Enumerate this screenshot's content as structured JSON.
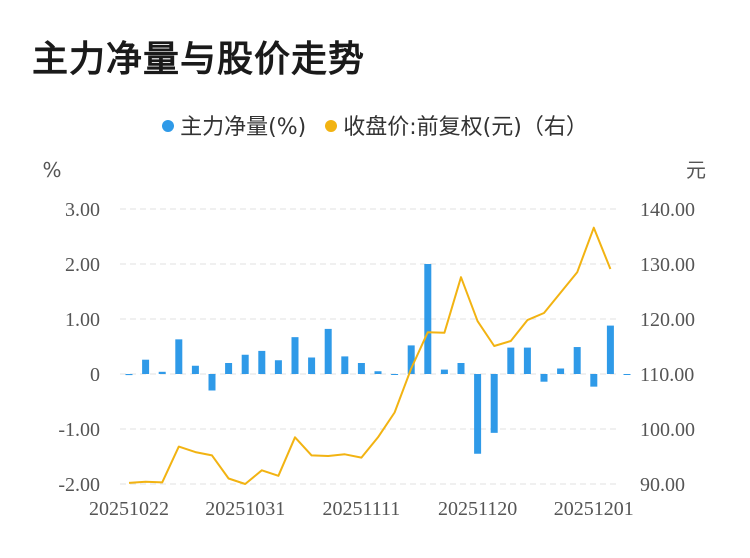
{
  "title": "主力净量与股价走势",
  "chart_data": {
    "type": "bar+line",
    "legend": [
      "主力净量(%)",
      "收盘价:前复权(元)（右）"
    ],
    "colors": {
      "bar": "#2f9ae8",
      "line": "#f2b312",
      "grid": "#e0e0e0",
      "axis_text": "#555555"
    },
    "left_axis": {
      "unit": "%",
      "ticks": [
        "3.00",
        "2.00",
        "1.00",
        "0",
        "-1.00",
        "-2.00"
      ],
      "range": [
        -2,
        3
      ]
    },
    "right_axis": {
      "unit": "元",
      "ticks": [
        "140.00",
        "130.00",
        "120.00",
        "110.00",
        "100.00",
        "90.00"
      ],
      "range": [
        90,
        140
      ]
    },
    "x_tick_labels": [
      "20251022",
      "20251031",
      "20251111",
      "20251120",
      "20251201"
    ],
    "x_tick_indices": [
      0,
      7,
      14,
      21,
      28
    ],
    "dates": [
      "20251022",
      "20251023",
      "20251024",
      "20251027",
      "20251028",
      "20251029",
      "20251030",
      "20251031",
      "20251103",
      "20251104",
      "20251105",
      "20251106",
      "20251107",
      "20251110",
      "20251111",
      "20251112",
      "20251113",
      "20251114",
      "20251117",
      "20251118",
      "20251119",
      "20251120",
      "20251121",
      "20251124",
      "20251125",
      "20251126",
      "20251127",
      "20251128",
      "20251201",
      "20251202",
      "20251203"
    ],
    "series": [
      {
        "name": "主力净量(%)",
        "type": "bar",
        "axis": "left",
        "values": [
          -0.02,
          0.26,
          0.04,
          0.63,
          0.15,
          -0.3,
          0.2,
          0.35,
          0.42,
          0.25,
          0.67,
          0.3,
          0.82,
          0.32,
          0.2,
          0.05,
          0.0,
          0.52,
          2.0,
          0.08,
          0.2,
          -1.45,
          -1.07,
          0.48,
          0.48,
          -0.14,
          0.1,
          0.49,
          -0.23,
          0.88,
          0.0
        ]
      },
      {
        "name": "收盘价:前复权(元)（右）",
        "type": "line",
        "axis": "right",
        "values": [
          90.2,
          90.4,
          90.3,
          96.8,
          95.8,
          95.2,
          91.0,
          90.0,
          92.5,
          91.5,
          98.5,
          95.2,
          95.1,
          95.4,
          94.8,
          98.5,
          103.0,
          111.0,
          117.6,
          117.5,
          127.6,
          119.6,
          115.1,
          116.0,
          119.8,
          121.1,
          124.8,
          128.5,
          136.6,
          129.1,
          null
        ]
      }
    ]
  }
}
